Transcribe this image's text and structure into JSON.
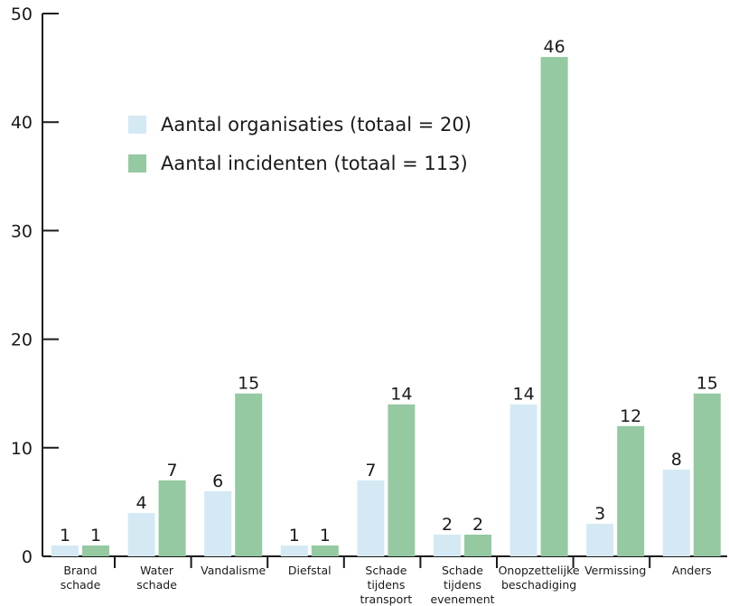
{
  "chart_data": {
    "type": "bar",
    "categories": [
      [
        "Brand",
        "schade"
      ],
      [
        "Water",
        "schade"
      ],
      [
        "Vandalisme"
      ],
      [
        "Diefstal"
      ],
      [
        "Schade",
        "tijdens",
        "transport"
      ],
      [
        "Schade",
        "tijdens",
        "evenement"
      ],
      [
        "Onopzettelijke",
        "beschadiging"
      ],
      [
        "Vermissing"
      ],
      [
        "Anders"
      ]
    ],
    "series": [
      {
        "name": "Aantal organisaties (totaal = 20)",
        "color": "#d4e9f4",
        "values": [
          1,
          4,
          6,
          1,
          7,
          2,
          14,
          3,
          8
        ]
      },
      {
        "name": "Aantal incidenten (totaal = 113)",
        "color": "#95c9a2",
        "values": [
          1,
          7,
          15,
          1,
          14,
          2,
          46,
          12,
          15
        ]
      }
    ],
    "y_ticks": [
      "0",
      "10",
      "20",
      "30",
      "40",
      "50"
    ],
    "ylim": [
      0,
      50
    ],
    "legend_position": "top-left",
    "grid": false
  }
}
